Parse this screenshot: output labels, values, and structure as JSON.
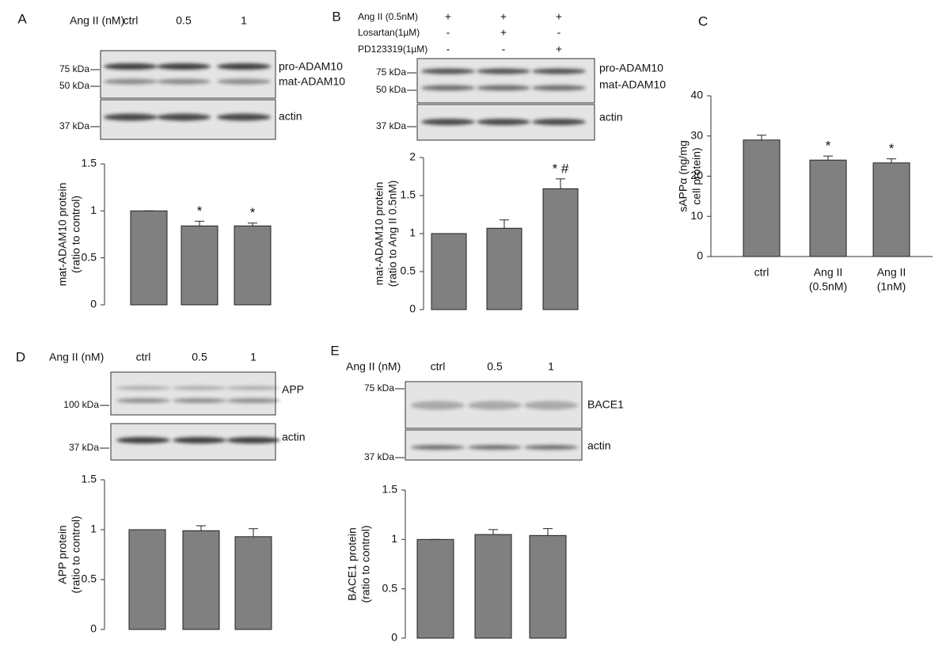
{
  "chart_data": [
    {
      "type": "bar",
      "panel": "A",
      "ylabel": [
        "mat-ADAM10 protein",
        "(ratio to control)"
      ],
      "categories": [
        null,
        null,
        null
      ],
      "values": [
        1,
        0.84,
        0.84
      ],
      "errors": [
        0,
        0.05,
        0.03
      ],
      "annotations": [
        null,
        "*",
        "*"
      ],
      "ylim": [
        0,
        1.5
      ],
      "yticks": [
        0,
        0.5,
        1,
        1.5
      ],
      "color": "#808080"
    },
    {
      "type": "bar",
      "panel": "B",
      "ylabel": [
        "mat-ADAM10 protein",
        "(ratio to Ang II 0.5nM)"
      ],
      "categories": [
        null,
        null,
        null
      ],
      "values": [
        1,
        1.07,
        1.59
      ],
      "errors": [
        0,
        0.11,
        0.13
      ],
      "annotations": [
        null,
        null,
        "* #"
      ],
      "ylim": [
        0,
        2
      ],
      "yticks": [
        0,
        0.5,
        1,
        1.5,
        2
      ],
      "color": "#808080"
    },
    {
      "type": "bar",
      "panel": "C",
      "ylabel": [
        "sAPPα (ng/mg",
        "cell protein)"
      ],
      "categories": [
        [
          "ctrl"
        ],
        [
          "Ang II",
          "(0.5nM)"
        ],
        [
          "Ang II",
          "(1nM)"
        ]
      ],
      "values": [
        29,
        24,
        23.3
      ],
      "errors": [
        1.2,
        1,
        1
      ],
      "annotations": [
        null,
        "*",
        "*"
      ],
      "ylim": [
        0,
        40
      ],
      "yticks": [
        0,
        10,
        20,
        30,
        40
      ],
      "color": "#808080",
      "x_axis_line": true
    },
    {
      "type": "bar",
      "panel": "D",
      "ylabel": [
        "APP protein",
        "(ratio to control)"
      ],
      "categories": [
        null,
        null,
        null
      ],
      "values": [
        1,
        0.99,
        0.93
      ],
      "errors": [
        0,
        0.05,
        0.08
      ],
      "annotations": [
        null,
        null,
        null
      ],
      "ylim": [
        0,
        1.5
      ],
      "yticks": [
        0,
        0.5,
        1,
        1.5
      ],
      "color": "#808080"
    },
    {
      "type": "bar",
      "panel": "E",
      "ylabel": [
        "BACE1 protein",
        "(ratio to control)"
      ],
      "categories": [
        null,
        null,
        null
      ],
      "values": [
        1,
        1.05,
        1.04
      ],
      "errors": [
        0,
        0.05,
        0.07
      ],
      "annotations": [
        null,
        null,
        null
      ],
      "ylim": [
        0,
        1.5
      ],
      "yticks": [
        0,
        0.5,
        1,
        1.5
      ],
      "color": "#808080"
    }
  ],
  "blots": [
    {
      "header": "Ang II (nM)",
      "lanes": [
        "ctrl",
        "0.5",
        "1"
      ],
      "markers": [
        "75 kDa",
        "50 kDa",
        "37 kDa"
      ],
      "bands": [
        "pro-ADAM10",
        "mat-ADAM10",
        "actin"
      ]
    },
    {
      "treatments": [
        {
          "label": "Ang II (0.5nM)",
          "signs": [
            "+",
            "+",
            "+"
          ]
        },
        {
          "label": "Losartan(1µM)",
          "signs": [
            "-",
            "+",
            "-"
          ]
        },
        {
          "label": "PD123319(1µM)",
          "signs": [
            "-",
            "-",
            "+"
          ]
        }
      ],
      "markers": [
        "75 kDa",
        "50 kDa",
        "37 kDa"
      ],
      "bands": [
        "pro-ADAM10",
        "mat-ADAM10",
        "actin"
      ]
    },
    {
      "header": "Ang II (nM)",
      "lanes": [
        "ctrl",
        "0.5",
        "1"
      ],
      "markers": [
        "100 kDa",
        "37 kDa"
      ],
      "bands": [
        "APP",
        "actin"
      ]
    },
    {
      "header": "Ang II (nM)",
      "lanes": [
        "ctrl",
        "0.5",
        "1"
      ],
      "markers": [
        "75 kDa",
        "37 kDa"
      ],
      "bands": [
        "BACE1",
        "actin"
      ]
    }
  ]
}
